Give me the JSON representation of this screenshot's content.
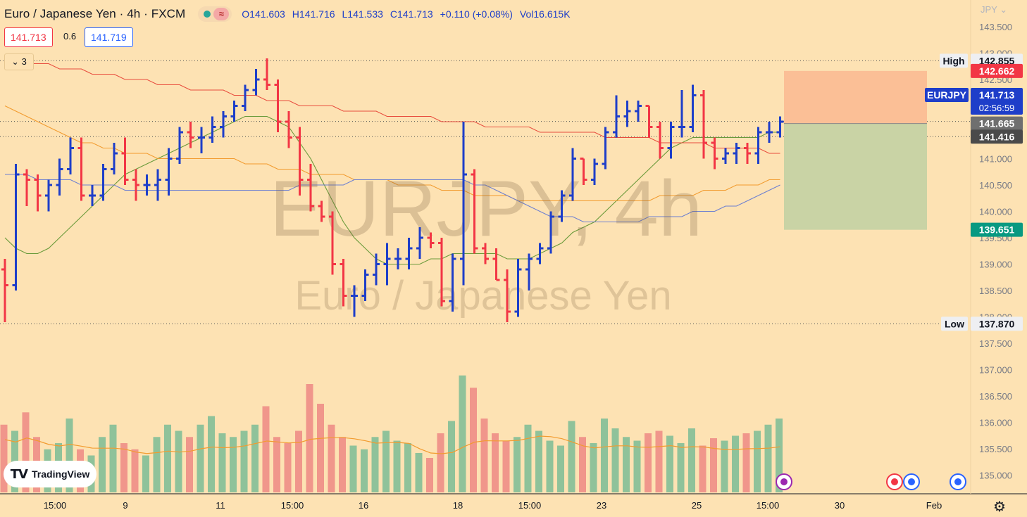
{
  "header": {
    "title": "Euro / Japanese Yen · 4h · FXCM",
    "open": "O141.603",
    "high": "H141.716",
    "low": "L141.533",
    "close": "C141.713",
    "change": "+0.110 (+0.08%)",
    "volume": "Vol16.615K"
  },
  "trade": {
    "sell": "141.713",
    "spread": "0.6",
    "buy": "141.719"
  },
  "indicators_count": "3",
  "watermark": {
    "symbol": "EURJPY, 4h",
    "name": "Euro / Japanese Yen"
  },
  "branding": {
    "logo_text": "TradingView"
  },
  "colors": {
    "background": "#fde2b3",
    "up": "#1e3ec9",
    "down": "#f23645",
    "vol_up": "#8fc29a",
    "vol_down": "#f0968b"
  },
  "chart_data": {
    "type": "ohlc",
    "symbol": "EURJPY",
    "timeframe": "4h",
    "currency": "JPY",
    "ylim": [
      134.7,
      143.7
    ],
    "price_ticks": [
      "143.500",
      "143.000",
      "142.500",
      "142.000",
      "141.500",
      "141.000",
      "140.500",
      "140.000",
      "139.500",
      "139.000",
      "138.500",
      "138.000",
      "137.500",
      "137.000",
      "136.500",
      "136.000",
      "135.500",
      "135.000"
    ],
    "x_tick_labels": [
      "15:00",
      "9",
      "11",
      "15:00",
      "16",
      "18",
      "15:00",
      "23",
      "25",
      "15:00",
      "30",
      "Feb"
    ],
    "bars": [
      [
        138.9,
        139.1,
        137.9,
        138.6
      ],
      [
        138.6,
        140.9,
        138.5,
        140.7
      ],
      [
        140.7,
        140.8,
        140.1,
        140.6
      ],
      [
        140.6,
        140.7,
        140.0,
        140.3
      ],
      [
        140.3,
        140.6,
        140.0,
        140.5
      ],
      [
        140.5,
        141.0,
        140.3,
        140.8
      ],
      [
        140.8,
        141.4,
        140.7,
        141.2
      ],
      [
        141.2,
        141.4,
        140.2,
        140.3
      ],
      [
        140.3,
        140.5,
        140.1,
        140.3
      ],
      [
        140.3,
        140.9,
        140.2,
        140.8
      ],
      [
        140.8,
        141.3,
        140.7,
        141.1
      ],
      [
        141.1,
        141.4,
        140.5,
        140.6
      ],
      [
        140.6,
        140.8,
        140.2,
        140.5
      ],
      [
        140.5,
        140.7,
        140.3,
        140.5
      ],
      [
        140.5,
        140.8,
        140.2,
        140.6
      ],
      [
        140.6,
        141.2,
        140.3,
        141.0
      ],
      [
        141.0,
        141.6,
        140.9,
        141.5
      ],
      [
        141.5,
        141.7,
        141.2,
        141.4
      ],
      [
        141.4,
        141.6,
        141.1,
        141.4
      ],
      [
        141.4,
        141.8,
        141.3,
        141.6
      ],
      [
        141.6,
        141.9,
        141.4,
        141.8
      ],
      [
        141.8,
        142.1,
        141.7,
        142.0
      ],
      [
        142.0,
        142.4,
        141.9,
        142.3
      ],
      [
        142.3,
        142.7,
        142.2,
        142.5
      ],
      [
        142.5,
        142.9,
        142.3,
        142.4
      ],
      [
        142.4,
        142.5,
        141.5,
        141.7
      ],
      [
        141.7,
        141.9,
        141.2,
        141.4
      ],
      [
        141.4,
        141.6,
        140.3,
        140.6
      ],
      [
        140.6,
        140.9,
        140.0,
        140.1
      ],
      [
        140.1,
        140.2,
        139.8,
        139.9
      ],
      [
        139.9,
        140.0,
        138.8,
        139.0
      ],
      [
        139.0,
        139.1,
        138.2,
        138.4
      ],
      [
        138.4,
        138.6,
        138.0,
        138.4
      ],
      [
        138.4,
        138.9,
        138.3,
        138.8
      ],
      [
        138.8,
        139.2,
        138.6,
        139.0
      ],
      [
        139.0,
        139.4,
        138.6,
        139.1
      ],
      [
        139.1,
        139.3,
        138.9,
        139.1
      ],
      [
        139.1,
        139.5,
        138.9,
        139.3
      ],
      [
        139.3,
        139.7,
        139.1,
        139.5
      ],
      [
        139.5,
        139.6,
        139.3,
        139.4
      ],
      [
        139.4,
        139.5,
        138.2,
        138.3
      ],
      [
        138.3,
        139.2,
        138.1,
        139.1
      ],
      [
        139.1,
        141.7,
        138.6,
        140.7
      ],
      [
        140.7,
        140.8,
        139.2,
        139.3
      ],
      [
        139.3,
        139.4,
        139.0,
        139.1
      ],
      [
        139.1,
        139.3,
        138.7,
        138.7
      ],
      [
        138.7,
        138.9,
        137.9,
        138.1
      ],
      [
        138.1,
        139.1,
        138.0,
        138.9
      ],
      [
        138.9,
        139.2,
        138.5,
        139.1
      ],
      [
        139.1,
        139.4,
        139.0,
        139.3
      ],
      [
        139.3,
        140.0,
        139.2,
        139.9
      ],
      [
        139.9,
        140.4,
        139.8,
        140.3
      ],
      [
        140.3,
        141.2,
        140.2,
        141.0
      ],
      [
        141.0,
        141.0,
        140.5,
        140.6
      ],
      [
        140.6,
        141.0,
        140.5,
        140.9
      ],
      [
        140.9,
        141.6,
        140.8,
        141.5
      ],
      [
        141.5,
        142.2,
        141.4,
        141.8
      ],
      [
        141.8,
        142.1,
        141.6,
        141.9
      ],
      [
        141.9,
        142.1,
        141.7,
        142.0
      ],
      [
        142.0,
        142.0,
        141.4,
        141.6
      ],
      [
        141.6,
        141.7,
        141.0,
        141.2
      ],
      [
        141.2,
        141.7,
        141.0,
        141.6
      ],
      [
        141.6,
        142.3,
        141.4,
        141.6
      ],
      [
        141.6,
        142.4,
        141.5,
        142.2
      ],
      [
        142.2,
        142.3,
        141.0,
        141.3
      ],
      [
        141.3,
        141.4,
        140.8,
        141.0
      ],
      [
        141.0,
        141.2,
        140.9,
        141.1
      ],
      [
        141.1,
        141.3,
        140.9,
        141.2
      ],
      [
        141.2,
        141.3,
        140.9,
        141.1
      ],
      [
        141.1,
        141.6,
        140.9,
        141.5
      ],
      [
        141.5,
        141.7,
        141.3,
        141.5
      ],
      [
        141.5,
        141.8,
        141.4,
        141.7
      ]
    ],
    "volume": [
      0.55,
      0.5,
      0.65,
      0.45,
      0.35,
      0.4,
      0.6,
      0.35,
      0.3,
      0.45,
      0.55,
      0.4,
      0.35,
      0.3,
      0.45,
      0.55,
      0.5,
      0.45,
      0.55,
      0.62,
      0.48,
      0.45,
      0.5,
      0.55,
      0.7,
      0.45,
      0.4,
      0.5,
      0.88,
      0.72,
      0.55,
      0.45,
      0.38,
      0.35,
      0.45,
      0.5,
      0.42,
      0.4,
      0.32,
      0.28,
      0.48,
      0.58,
      0.95,
      0.85,
      0.6,
      0.48,
      0.42,
      0.45,
      0.55,
      0.5,
      0.42,
      0.38,
      0.58,
      0.45,
      0.4,
      0.6,
      0.52,
      0.45,
      0.42,
      0.48,
      0.5,
      0.46,
      0.4,
      0.52,
      0.38,
      0.44,
      0.42,
      0.46,
      0.48,
      0.5,
      0.55,
      0.6
    ],
    "moving_averages": [
      {
        "color": "#6a9a3a",
        "values": [
          139.5,
          139.3,
          139.2,
          139.2,
          139.3,
          139.5,
          139.7,
          139.9,
          140.1,
          140.3,
          140.5,
          140.7,
          140.8,
          140.9,
          141.0,
          141.1,
          141.2,
          141.3,
          141.4,
          141.5,
          141.6,
          141.7,
          141.8,
          141.8,
          141.8,
          141.7,
          141.6,
          141.3,
          141.0,
          140.6,
          140.2,
          139.8,
          139.5,
          139.3,
          139.1,
          139.0,
          139.0,
          139.0,
          139.0,
          139.1,
          139.1,
          139.2,
          139.2,
          139.2,
          139.2,
          139.2,
          139.1,
          139.1,
          139.1,
          139.2,
          139.3,
          139.4,
          139.6,
          139.7,
          139.8,
          140.0,
          140.2,
          140.4,
          140.6,
          140.8,
          141.0,
          141.2,
          141.3,
          141.4,
          141.4,
          141.4,
          141.4,
          141.4,
          141.4,
          141.4,
          141.5,
          141.5
        ]
      },
      {
        "color": "#f29b2e",
        "values": [
          142.0,
          141.9,
          141.8,
          141.7,
          141.6,
          141.5,
          141.4,
          141.3,
          141.3,
          141.2,
          141.2,
          141.1,
          141.1,
          141.1,
          141.0,
          141.0,
          141.0,
          141.0,
          141.0,
          141.0,
          141.0,
          141.0,
          140.9,
          140.9,
          140.9,
          140.8,
          140.8,
          140.8,
          140.7,
          140.7,
          140.7,
          140.7,
          140.6,
          140.6,
          140.6,
          140.6,
          140.5,
          140.5,
          140.5,
          140.5,
          140.4,
          140.4,
          140.4,
          140.3,
          140.3,
          140.3,
          140.3,
          140.2,
          140.2,
          140.2,
          140.2,
          140.2,
          140.2,
          140.2,
          140.2,
          140.2,
          140.2,
          140.2,
          140.2,
          140.2,
          140.3,
          140.3,
          140.3,
          140.3,
          140.4,
          140.4,
          140.4,
          140.5,
          140.5,
          140.5,
          140.6,
          140.6
        ]
      },
      {
        "color": "#e84c3d",
        "values": [
          142.9,
          142.9,
          142.8,
          142.8,
          142.8,
          142.7,
          142.7,
          142.7,
          142.6,
          142.6,
          142.6,
          142.5,
          142.5,
          142.5,
          142.4,
          142.4,
          142.4,
          142.3,
          142.3,
          142.3,
          142.3,
          142.2,
          142.2,
          142.2,
          142.1,
          142.1,
          142.1,
          142.0,
          142.0,
          142.0,
          142.0,
          141.9,
          141.9,
          141.9,
          141.9,
          141.8,
          141.8,
          141.8,
          141.8,
          141.8,
          141.7,
          141.7,
          141.7,
          141.7,
          141.6,
          141.6,
          141.6,
          141.6,
          141.6,
          141.5,
          141.5,
          141.5,
          141.5,
          141.5,
          141.5,
          141.4,
          141.4,
          141.4,
          141.4,
          141.4,
          141.3,
          141.3,
          141.3,
          141.3,
          141.3,
          141.2,
          141.2,
          141.2,
          141.2,
          141.2,
          141.1,
          141.1
        ]
      },
      {
        "color": "#6c7fd1",
        "values": [
          140.7,
          140.7,
          140.7,
          140.6,
          140.6,
          140.6,
          140.6,
          140.5,
          140.5,
          140.5,
          140.5,
          140.4,
          140.4,
          140.4,
          140.4,
          140.4,
          140.4,
          140.4,
          140.4,
          140.4,
          140.4,
          140.4,
          140.4,
          140.4,
          140.4,
          140.4,
          140.4,
          140.5,
          140.5,
          140.5,
          140.5,
          140.5,
          140.6,
          140.6,
          140.6,
          140.6,
          140.6,
          140.6,
          140.6,
          140.6,
          140.6,
          140.6,
          140.6,
          140.5,
          140.5,
          140.4,
          140.3,
          140.2,
          140.1,
          140.0,
          139.9,
          139.9,
          139.9,
          139.8,
          139.8,
          139.8,
          139.8,
          139.8,
          139.8,
          139.9,
          139.9,
          139.9,
          139.9,
          140.0,
          140.0,
          140.0,
          140.1,
          140.1,
          140.2,
          140.3,
          140.4,
          140.5
        ]
      }
    ],
    "position_box": {
      "target": 142.662,
      "entry": 141.665,
      "stop": 139.651
    },
    "high": {
      "label": "High",
      "value": "142.855"
    },
    "low": {
      "label": "Low",
      "value": "137.870"
    },
    "price_labels": {
      "symbol_tag": "EURJPY",
      "last": "141.713",
      "countdown": "02:56:59",
      "target": "142.662",
      "entry": "141.665",
      "ma": "141.416",
      "stop": "139.651"
    }
  }
}
